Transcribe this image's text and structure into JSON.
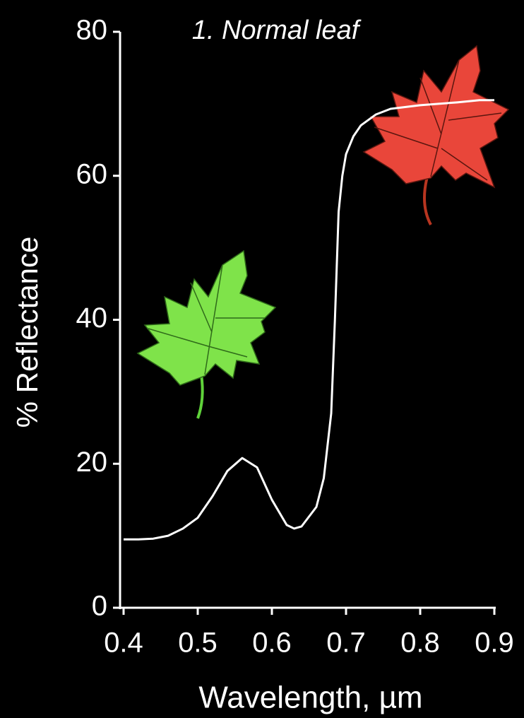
{
  "chart_data": {
    "type": "line",
    "title": "1. Normal leaf",
    "x_label": "Wavelength, µm",
    "y_label": "% Reflectance",
    "x": [
      0.4,
      0.42,
      0.44,
      0.46,
      0.48,
      0.5,
      0.52,
      0.54,
      0.56,
      0.58,
      0.6,
      0.62,
      0.63,
      0.64,
      0.66,
      0.67,
      0.68,
      0.685,
      0.69,
      0.695,
      0.7,
      0.71,
      0.72,
      0.74,
      0.76,
      0.8,
      0.85,
      0.88,
      0.9
    ],
    "values": [
      9.5,
      9.5,
      9.6,
      10,
      11,
      12.5,
      15.5,
      19,
      20.8,
      19.5,
      15,
      11.5,
      11,
      11.3,
      14,
      18,
      27,
      40,
      55,
      60,
      63,
      65.5,
      67,
      68.5,
      69.3,
      69.8,
      70.2,
      70.5,
      70.5
    ],
    "color": "#ffffff",
    "xlim": [
      0.4,
      0.9
    ],
    "xticks": [
      0.4,
      0.5,
      0.6,
      0.7,
      0.8,
      0.9
    ],
    "ylim": [
      0,
      80
    ],
    "yticks": [
      0,
      20,
      40,
      60,
      80
    ],
    "grid": false
  }
}
